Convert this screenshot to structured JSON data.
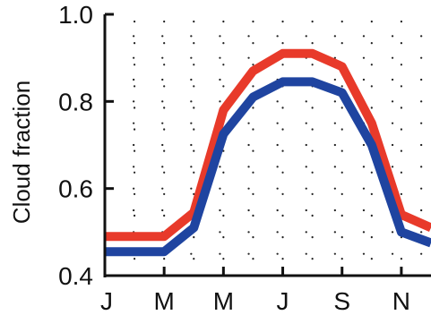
{
  "chart_data": {
    "type": "line",
    "title": "",
    "xlabel": "",
    "ylabel": "Cloud fraction",
    "x": [
      1,
      2,
      3,
      4,
      5,
      6,
      7,
      8,
      9,
      10,
      11,
      12
    ],
    "x_tick_values": [
      1,
      3,
      5,
      7,
      9,
      11
    ],
    "x_tick_labels": [
      "J",
      "M",
      "M",
      "J",
      "S",
      "N"
    ],
    "xlim": [
      1,
      12
    ],
    "ylim": [
      0.4,
      1.0
    ],
    "y_ticks": [
      0.4,
      0.6,
      0.8,
      1.0
    ],
    "y_tick_labels": [
      "0.4",
      "0.6",
      "0.8",
      "1.0"
    ],
    "grid": "dotted",
    "legend": "none",
    "series": [
      {
        "color": "#e83a2a",
        "values": [
          0.49,
          0.49,
          0.49,
          0.545,
          0.78,
          0.87,
          0.91,
          0.91,
          0.88,
          0.75,
          0.54,
          0.51
        ]
      },
      {
        "color": "#1f44a0",
        "values": [
          0.455,
          0.455,
          0.455,
          0.51,
          0.725,
          0.81,
          0.845,
          0.845,
          0.82,
          0.7,
          0.5,
          0.475
        ]
      }
    ]
  }
}
